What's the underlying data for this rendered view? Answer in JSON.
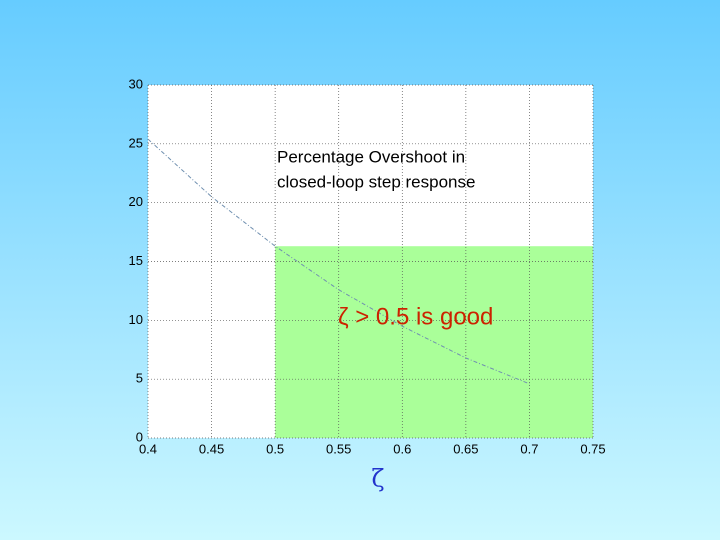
{
  "chart_data": {
    "type": "line",
    "x": [
      0.4,
      0.45,
      0.5,
      0.55,
      0.6,
      0.65,
      0.7
    ],
    "series": [
      {
        "color": "#7090b0",
        "values": [
          25.4,
          20.5,
          16.3,
          12.6,
          9.5,
          6.8,
          4.6
        ]
      }
    ],
    "xlim": [
      0.4,
      0.75
    ],
    "ylim": [
      0,
      30
    ],
    "xticks": [
      0.4,
      0.45,
      0.5,
      0.55,
      0.6,
      0.65,
      0.7,
      0.75
    ],
    "yticks": [
      0,
      5,
      10,
      15,
      20,
      25,
      30
    ],
    "grid": true,
    "xlabel": "ζ",
    "annotation": [
      "Percentage Overshoot in",
      "closed-loop step response"
    ],
    "highlight": {
      "x": [
        0.5,
        0.75
      ],
      "y": [
        0,
        16.3
      ],
      "color": "#aaff99",
      "label": "ζ > 0.5 is good",
      "label_color": "#cc2200"
    }
  }
}
